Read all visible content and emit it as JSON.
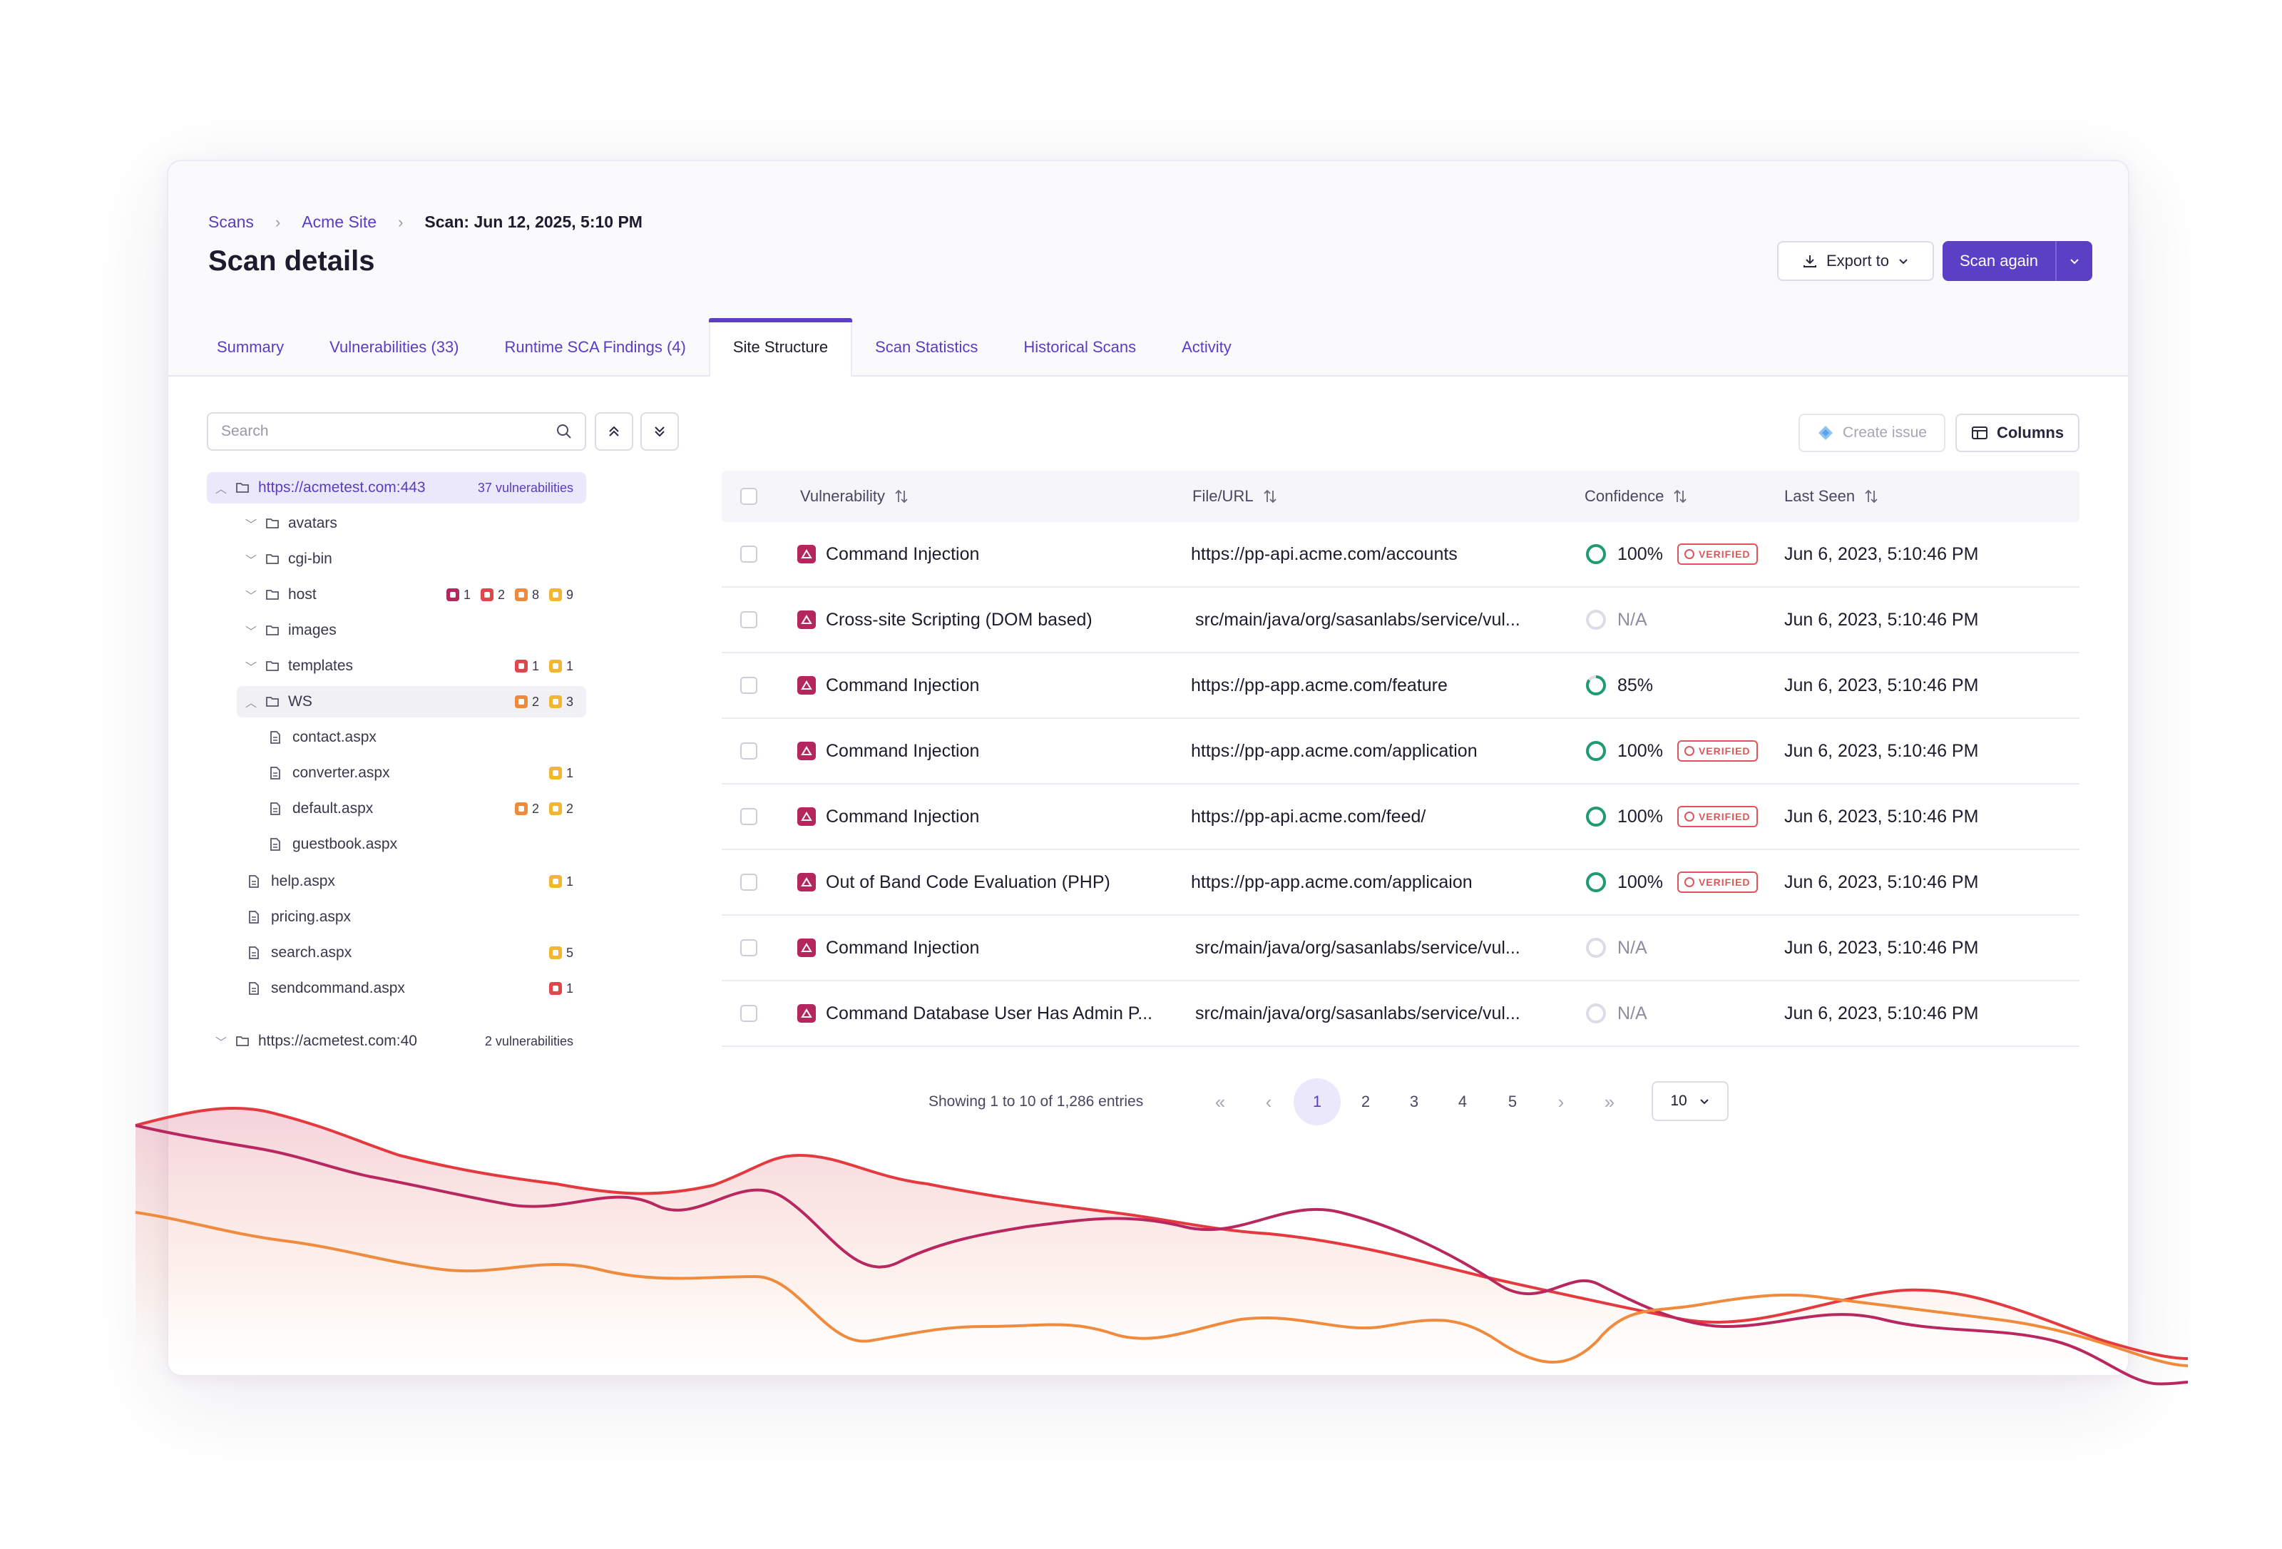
{
  "breadcrumb": {
    "item1": "Scans",
    "item2": "Acme Site",
    "current": "Scan: Jun 12, 2025, 5:10 PM"
  },
  "page": {
    "title": "Scan details"
  },
  "actions": {
    "export_label": "Export to",
    "scan_again_label": "Scan again"
  },
  "tabs": [
    {
      "label": "Summary"
    },
    {
      "label": "Vulnerabilities (33)"
    },
    {
      "label": "Runtime SCA Findings (4)"
    },
    {
      "label": "Site Structure"
    },
    {
      "label": "Scan Statistics"
    },
    {
      "label": "Historical Scans"
    },
    {
      "label": "Activity"
    }
  ],
  "search": {
    "placeholder": "Search"
  },
  "tree": {
    "root": {
      "label": "https://acmetest.com:443",
      "count": "37 vulnerabilities"
    },
    "items": [
      {
        "label": "avatars"
      },
      {
        "label": "cgi-bin"
      },
      {
        "label": "host",
        "b1": "1",
        "b2": "2",
        "b3": "8",
        "b4": "9"
      },
      {
        "label": "images"
      },
      {
        "label": "templates",
        "b2": "1",
        "b4": "1"
      },
      {
        "label": "WS",
        "b3": "2",
        "b4": "3"
      },
      {
        "label": "contact.aspx"
      },
      {
        "label": "converter.aspx",
        "b4": "1"
      },
      {
        "label": "default.aspx",
        "b3": "2",
        "b4": "2"
      },
      {
        "label": "guestbook.aspx"
      },
      {
        "label": "help.aspx",
        "b4": "1"
      },
      {
        "label": "pricing.aspx"
      },
      {
        "label": "search.aspx",
        "b4": "5"
      },
      {
        "label": "sendcommand.aspx",
        "b2": "1"
      }
    ],
    "root2": {
      "label": "https://acmetest.com:40",
      "count": "2 vulnerabilities"
    }
  },
  "toolbar": {
    "create_issue": "Create issue",
    "columns": "Columns"
  },
  "table": {
    "headers": {
      "vulnerability": "Vulnerability",
      "url": "File/URL",
      "confidence": "Confidence",
      "last_seen": "Last Seen"
    },
    "verified_label": "VERIFIED",
    "rows": [
      {
        "vuln": "Command Injection",
        "url": "https://pp-api.acme.com/accounts",
        "conf": "100%",
        "conf_level": 1.0,
        "verified": true,
        "seen": "Jun 6, 2023, 5:10:46 PM"
      },
      {
        "vuln": "Cross-site Scripting (DOM based)",
        "url": "src/main/java/org/sasanlabs/service/vul...",
        "conf": "N/A",
        "conf_level": 0,
        "verified": false,
        "seen": "Jun 6, 2023, 5:10:46 PM"
      },
      {
        "vuln": "Command Injection",
        "url": "https://pp-app.acme.com/feature",
        "conf": "85%",
        "conf_level": 0.85,
        "verified": false,
        "seen": "Jun 6, 2023, 5:10:46 PM"
      },
      {
        "vuln": "Command Injection",
        "url": "https://pp-app.acme.com/application",
        "conf": "100%",
        "conf_level": 1.0,
        "verified": true,
        "seen": "Jun 6, 2023, 5:10:46 PM"
      },
      {
        "vuln": "Command Injection",
        "url": "https://pp-api.acme.com/feed/",
        "conf": "100%",
        "conf_level": 1.0,
        "verified": true,
        "seen": "Jun 6, 2023, 5:10:46 PM"
      },
      {
        "vuln": "Out of Band Code Evaluation (PHP)",
        "url": "https://pp-app.acme.com/applicaion",
        "conf": "100%",
        "conf_level": 1.0,
        "verified": true,
        "seen": "Jun 6, 2023, 5:10:46 PM"
      },
      {
        "vuln": "Command Injection",
        "url": "src/main/java/org/sasanlabs/service/vul...",
        "conf": "N/A",
        "conf_level": 0,
        "verified": false,
        "seen": "Jun 6, 2023, 5:10:46 PM"
      },
      {
        "vuln": "Command Database User Has Admin P...",
        "url": "src/main/java/org/sasanlabs/service/vul...",
        "conf": "N/A",
        "conf_level": 0,
        "verified": false,
        "seen": "Jun 6, 2023, 5:10:46 PM"
      }
    ]
  },
  "pagination": {
    "summary": "Showing 1 to 10 of 1,286 entries",
    "pages": [
      "1",
      "2",
      "3",
      "4",
      "5"
    ],
    "current": "1",
    "per_page": "10"
  },
  "colors": {
    "accent": "#5b3fc4",
    "critical": "#b3265e",
    "high": "#e0474c",
    "medium": "#ef8a3c",
    "low": "#f2b630",
    "confidence": "#1f9b74"
  },
  "icons": [
    "chevron-right-icon",
    "download-icon",
    "chevron-down-icon",
    "search-icon",
    "collapse-all-icon",
    "expand-all-icon",
    "folder-icon",
    "file-icon",
    "jira-icon",
    "columns-icon",
    "sort-icon",
    "severity-critical-icon",
    "verified-check-icon"
  ]
}
